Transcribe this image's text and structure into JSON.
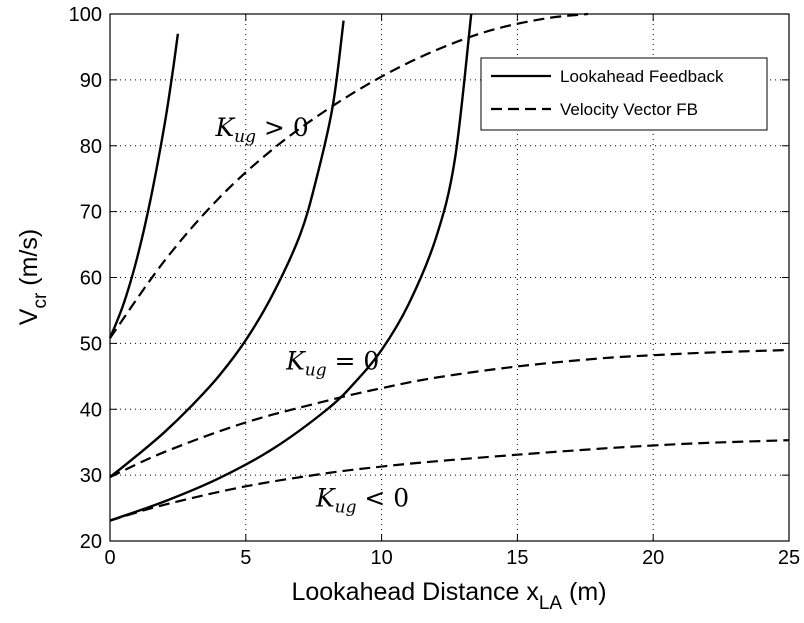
{
  "chart_data": {
    "type": "line",
    "title": "",
    "xlabel": "Lookahead Distance x",
    "xlabel_sub": "LA",
    "xlabel_unit": " (m)",
    "ylabel": "V",
    "ylabel_sub": "cr",
    "ylabel_unit": " (m/s)",
    "xlim": [
      0,
      25
    ],
    "ylim": [
      20,
      100
    ],
    "xticks": [
      0,
      5,
      10,
      15,
      20,
      25
    ],
    "yticks": [
      20,
      30,
      40,
      50,
      60,
      70,
      80,
      90,
      100
    ],
    "grid": true,
    "legend_position": "top-right",
    "legend": [
      {
        "label": "Lookahead Feedback",
        "style": "solid"
      },
      {
        "label": "Velocity Vector FB",
        "style": "dashed"
      }
    ],
    "annotations": [
      {
        "base": "K",
        "sub": "ug",
        "rel": "> 0",
        "x": 5.6,
        "y": 81.5
      },
      {
        "base": "K",
        "sub": "ug",
        "rel": "= 0",
        "x": 8.2,
        "y": 46
      },
      {
        "base": "K",
        "sub": "ug",
        "rel": "< 0",
        "x": 9.3,
        "y": 25.2
      }
    ],
    "series": [
      {
        "group": "K_ug > 0",
        "style": "solid",
        "x": [
          0,
          0.5,
          1.0,
          1.5,
          2.0,
          2.3,
          2.5
        ],
        "y": [
          50.8,
          56,
          63,
          72,
          83,
          91,
          97
        ]
      },
      {
        "group": "K_ug > 0",
        "style": "dashed",
        "x": [
          0,
          2,
          4,
          6,
          8,
          10,
          12,
          14,
          16,
          17.6
        ],
        "y": [
          50.8,
          62.5,
          72,
          79.5,
          85.5,
          90.5,
          94.5,
          97.5,
          99.3,
          100
        ]
      },
      {
        "group": "K_ug = 0",
        "style": "solid",
        "x": [
          0,
          1,
          2,
          3,
          4,
          5,
          6,
          7,
          7.6,
          8.2,
          8.6
        ],
        "y": [
          29.7,
          33,
          36.5,
          40.5,
          45,
          50.5,
          57.5,
          66.5,
          75,
          86,
          99
        ]
      },
      {
        "group": "K_ug = 0",
        "style": "dashed",
        "x": [
          0,
          2,
          5,
          8,
          10,
          12,
          15,
          18,
          20,
          22,
          25
        ],
        "y": [
          29.7,
          33.5,
          38,
          41.3,
          43.2,
          44.8,
          46.5,
          47.7,
          48.2,
          48.6,
          49
        ]
      },
      {
        "group": "K_ug < 0",
        "style": "solid",
        "x": [
          0,
          2,
          4,
          6,
          8,
          9,
          10,
          11,
          12,
          12.7,
          13.3
        ],
        "y": [
          23.1,
          26,
          29.5,
          34,
          40,
          44,
          49,
          56,
          66,
          78,
          100
        ]
      },
      {
        "group": "K_ug < 0",
        "style": "dashed",
        "x": [
          0,
          2,
          5,
          8,
          10,
          12,
          15,
          18,
          20,
          22,
          25
        ],
        "y": [
          23.1,
          25.5,
          28.3,
          30.3,
          31.3,
          32.1,
          33.1,
          34,
          34.5,
          34.9,
          35.3
        ]
      }
    ]
  }
}
